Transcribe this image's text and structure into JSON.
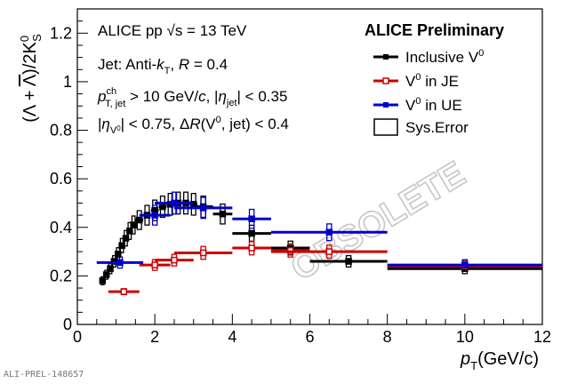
{
  "figure_id": "ALI-PREL-148657",
  "watermark": "OBSOLETE",
  "chart_data": {
    "type": "scatter",
    "title": "",
    "xlabel": "p_T (GeV/c)",
    "ylabel": "(Λ + Λ̄)/2K⁰_S",
    "xlim": [
      0,
      12
    ],
    "ylim": [
      0,
      1.3
    ],
    "x_ticks": [
      0,
      2,
      4,
      6,
      8,
      10,
      12
    ],
    "y_ticks": [
      0,
      0.2,
      0.4,
      0.6,
      0.8,
      1,
      1.2
    ],
    "y_tick_labels": [
      "0",
      "0.2",
      "0.4",
      "0.6",
      "0.8",
      "1",
      "1.2"
    ],
    "grid": false,
    "legend_placement": "top-right",
    "legend_title": "ALICE Preliminary",
    "annotations": [
      "ALICE pp  √s = 13 TeV",
      "Jet: Anti-kT, R = 0.4",
      "p^ch_T,jet > 10 GeV/c, |η_jet| < 0.35",
      "|η_V0| < 0.75, ΔR(V0, jet) < 0.4"
    ],
    "series": [
      {
        "name": "Inclusive V0",
        "color": "#000000",
        "marker": "square-filled",
        "points": [
          {
            "x": 0.65,
            "xerr": 0.05,
            "y": 0.18
          },
          {
            "x": 0.75,
            "xerr": 0.05,
            "y": 0.205
          },
          {
            "x": 0.85,
            "xerr": 0.05,
            "y": 0.23
          },
          {
            "x": 0.95,
            "xerr": 0.05,
            "y": 0.26
          },
          {
            "x": 1.05,
            "xerr": 0.05,
            "y": 0.29
          },
          {
            "x": 1.15,
            "xerr": 0.05,
            "y": 0.325
          },
          {
            "x": 1.25,
            "xerr": 0.05,
            "y": 0.355
          },
          {
            "x": 1.35,
            "xerr": 0.05,
            "y": 0.385
          },
          {
            "x": 1.45,
            "xerr": 0.05,
            "y": 0.41
          },
          {
            "x": 1.6,
            "xerr": 0.1,
            "y": 0.43
          },
          {
            "x": 1.8,
            "xerr": 0.1,
            "y": 0.45
          },
          {
            "x": 2.0,
            "xerr": 0.1,
            "y": 0.47
          },
          {
            "x": 2.2,
            "xerr": 0.1,
            "y": 0.485
          },
          {
            "x": 2.4,
            "xerr": 0.1,
            "y": 0.495
          },
          {
            "x": 2.6,
            "xerr": 0.1,
            "y": 0.5
          },
          {
            "x": 2.8,
            "xerr": 0.1,
            "y": 0.5
          },
          {
            "x": 3.0,
            "xerr": 0.1,
            "y": 0.495
          },
          {
            "x": 3.25,
            "xerr": 0.25,
            "y": 0.485
          },
          {
            "x": 3.75,
            "xerr": 0.25,
            "y": 0.455
          },
          {
            "x": 4.5,
            "xerr": 0.5,
            "y": 0.375
          },
          {
            "x": 5.5,
            "xerr": 0.5,
            "y": 0.315
          },
          {
            "x": 7.0,
            "xerr": 1.0,
            "y": 0.26
          },
          {
            "x": 10.0,
            "xerr": 2.0,
            "y": 0.23
          }
        ]
      },
      {
        "name": "V0 in JE",
        "color": "#cc0000",
        "marker": "square-open",
        "points": [
          {
            "x": 1.2,
            "xerr": 0.4,
            "y": 0.135
          },
          {
            "x": 2.0,
            "xerr": 0.4,
            "y": 0.245
          },
          {
            "x": 2.5,
            "xerr": 0.5,
            "y": 0.265
          },
          {
            "x": 3.25,
            "xerr": 0.75,
            "y": 0.295
          },
          {
            "x": 4.5,
            "xerr": 0.5,
            "y": 0.315
          },
          {
            "x": 5.5,
            "xerr": 0.5,
            "y": 0.305
          },
          {
            "x": 6.5,
            "xerr": 1.5,
            "y": 0.3
          },
          {
            "x": 10.0,
            "xerr": 2.0,
            "y": 0.24
          }
        ]
      },
      {
        "name": "V0 in UE",
        "color": "#0000cc",
        "marker": "square-filled",
        "points": [
          {
            "x": 1.1,
            "xerr": 0.6,
            "y": 0.255
          },
          {
            "x": 2.0,
            "xerr": 0.4,
            "y": 0.45
          },
          {
            "x": 2.5,
            "xerr": 0.5,
            "y": 0.5
          },
          {
            "x": 3.25,
            "xerr": 0.75,
            "y": 0.48
          },
          {
            "x": 4.5,
            "xerr": 0.5,
            "y": 0.435
          },
          {
            "x": 6.5,
            "xerr": 1.5,
            "y": 0.38
          },
          {
            "x": 10.0,
            "xerr": 2.0,
            "y": 0.245
          }
        ]
      },
      {
        "name": "Sys.Error",
        "color": "#000000",
        "marker": "open-box",
        "points": []
      }
    ]
  }
}
